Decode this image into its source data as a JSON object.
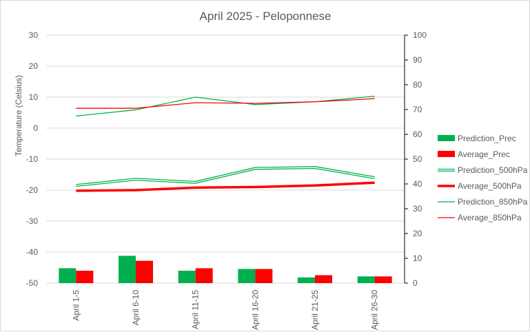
{
  "chart_data": {
    "type": "bar+line",
    "title": "April 2025 - Peloponnese",
    "ylabel": "Temperature (Celsius)",
    "y2label": "",
    "categories": [
      "April 1-5",
      "April 6-10",
      "April 11-15",
      "April 16-20",
      "April 21-25",
      "April 26-30"
    ],
    "ylim": [
      -50,
      30
    ],
    "yticks": [
      30,
      20,
      10,
      0,
      -10,
      -20,
      -30,
      -40,
      -50
    ],
    "ytick_labels": [
      "30",
      "20",
      "10",
      "0",
      "-10",
      "-20",
      "-30",
      "-40",
      "-50"
    ],
    "y2lim": [
      0,
      100
    ],
    "y2ticks": [
      100,
      90,
      80,
      70,
      60,
      50,
      40,
      30,
      20,
      10,
      0
    ],
    "y2tick_labels": [
      "100",
      "90",
      "80",
      "70",
      "60",
      "50",
      "40",
      "30",
      "20",
      "10",
      "0"
    ],
    "grid": true,
    "legend_position": "right",
    "series": [
      {
        "name": "Prediction_Prec",
        "kind": "bar",
        "axis": "secondary",
        "color": "#00b050",
        "values": [
          6,
          11,
          5,
          5.7,
          2.3,
          2.7
        ]
      },
      {
        "name": "Average_Prec",
        "kind": "bar",
        "axis": "secondary",
        "color": "#ff0000",
        "values": [
          5,
          9,
          6,
          5.7,
          3.2,
          2.7
        ]
      },
      {
        "name": "Prediction_500hPa",
        "kind": "line",
        "style": "double",
        "axis": "primary",
        "color": "#00b050",
        "values": [
          -18.5,
          -16.5,
          -17.5,
          -13,
          -12.7,
          -16
        ]
      },
      {
        "name": "Average_500hPa",
        "kind": "line",
        "style": "thick",
        "axis": "primary",
        "color": "#ff0000",
        "values": [
          -20.2,
          -20,
          -19.2,
          -19,
          -18.5,
          -17.6
        ]
      },
      {
        "name": "Prediction_850hPa",
        "kind": "line",
        "style": "thin",
        "axis": "primary",
        "color": "#00b050",
        "values": [
          3.9,
          5.9,
          10,
          7.6,
          8.5,
          10.3
        ]
      },
      {
        "name": "Average_850hPa",
        "kind": "line",
        "style": "thin",
        "axis": "primary",
        "color": "#ff0000",
        "values": [
          6.4,
          6.4,
          8.2,
          8,
          8.5,
          9.5
        ]
      }
    ]
  }
}
